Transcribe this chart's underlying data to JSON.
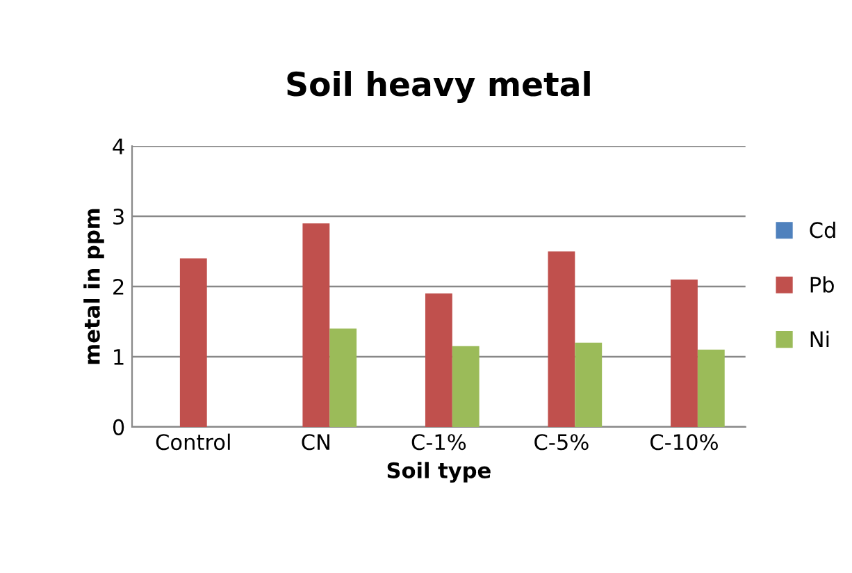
{
  "chart_data": {
    "type": "bar",
    "title": "Soil heavy metal",
    "xlabel": "Soil type",
    "ylabel": "metal in ppm",
    "categories": [
      "Control",
      "CN",
      "C-1%",
      "C-5%",
      "C-10%"
    ],
    "series": [
      {
        "name": "Cd",
        "color": "#4f81bd",
        "values": [
          0,
          0,
          0,
          0,
          0
        ]
      },
      {
        "name": "Pb",
        "color": "#c0504d",
        "values": [
          2.4,
          2.9,
          1.9,
          2.5,
          2.1
        ]
      },
      {
        "name": "Ni",
        "color": "#9bbb59",
        "values": [
          0,
          1.4,
          1.15,
          1.2,
          1.1
        ]
      }
    ],
    "ylim": [
      0,
      4
    ],
    "yticks": [
      0,
      1,
      2,
      3,
      4
    ],
    "grid": "y",
    "legend": "right"
  }
}
